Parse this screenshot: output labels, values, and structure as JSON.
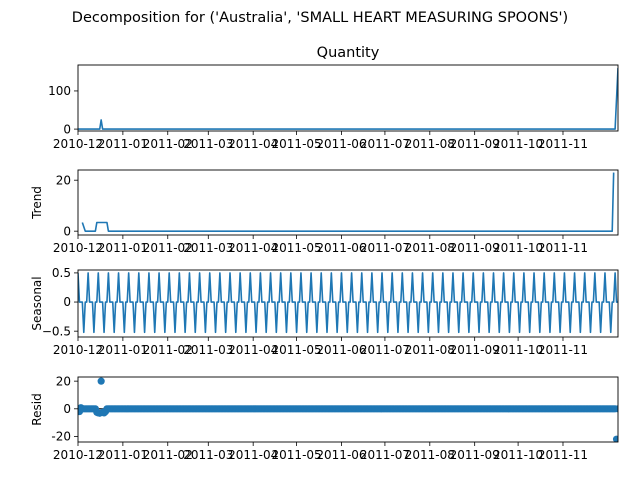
{
  "figure": {
    "suptitle": "Decomposition for ('Australia', 'SMALL HEART MEASURING SPOONS')",
    "line_color": "#1f77b4"
  },
  "chart_data": [
    {
      "type": "line",
      "title": "Quantity",
      "ylabel": "",
      "ylim": [
        -5,
        168
      ],
      "yticks": [
        0,
        100
      ],
      "xlim": [
        "2010-12-01",
        "2011-12-09"
      ],
      "xticks": [
        "2010-12",
        "2011-01",
        "2011-02",
        "2011-03",
        "2011-04",
        "2011-05",
        "2011-06",
        "2011-07",
        "2011-08",
        "2011-09",
        "2011-10",
        "2011-11"
      ],
      "grid": false,
      "x": [
        "2010-12-01",
        "2010-12-02",
        "2010-12-16",
        "2010-12-17",
        "2010-12-18",
        "2011-12-06",
        "2011-12-07",
        "2011-12-09"
      ],
      "values": [
        0,
        0,
        0,
        24,
        0,
        0,
        0,
        160
      ]
    },
    {
      "type": "line",
      "title": "",
      "ylabel": "Trend",
      "ylim": [
        -1.5,
        24
      ],
      "yticks": [
        0,
        20
      ],
      "xlim": [
        "2010-12-01",
        "2011-12-09"
      ],
      "xticks": [
        "2010-12",
        "2011-01",
        "2011-02",
        "2011-03",
        "2011-04",
        "2011-05",
        "2011-06",
        "2011-07",
        "2011-08",
        "2011-09",
        "2011-10",
        "2011-11"
      ],
      "grid": false,
      "x": [
        "2010-12-04",
        "2010-12-06",
        "2010-12-13",
        "2010-12-14",
        "2010-12-21",
        "2010-12-22",
        "2011-12-05",
        "2011-12-06"
      ],
      "values": [
        3.4,
        0,
        0,
        3.4,
        3.4,
        0,
        0,
        23
      ]
    },
    {
      "type": "line",
      "title": "",
      "ylabel": "Seasonal",
      "ylim": [
        -0.6,
        0.55
      ],
      "yticks": [
        0.5,
        0.0,
        -0.5
      ],
      "xlim": [
        "2010-12-01",
        "2011-12-09"
      ],
      "xticks": [
        "2010-12",
        "2011-01",
        "2011-02",
        "2011-03",
        "2011-04",
        "2011-05",
        "2011-06",
        "2011-07",
        "2011-08",
        "2011-09",
        "2011-10",
        "2011-11"
      ],
      "grid": false,
      "period_days": 7,
      "pattern": [
        0.5,
        0,
        0,
        0,
        -0.52,
        0,
        0
      ]
    },
    {
      "type": "scatter",
      "title": "",
      "ylabel": "Resid",
      "ylim": [
        -24,
        23
      ],
      "yticks": [
        20,
        0,
        -20
      ],
      "xlim": [
        "2010-12-01",
        "2011-12-09"
      ],
      "xticks": [
        "2010-12",
        "2011-01",
        "2011-02",
        "2011-03",
        "2011-04",
        "2011-05",
        "2011-06",
        "2011-07",
        "2011-08",
        "2011-09",
        "2011-10",
        "2011-11"
      ],
      "grid": false,
      "baseline": 0,
      "outliers": [
        {
          "x": "2010-12-02",
          "y": -2
        },
        {
          "x": "2010-12-03",
          "y": 0.8
        },
        {
          "x": "2010-12-14",
          "y": -2.5
        },
        {
          "x": "2010-12-15",
          "y": -3
        },
        {
          "x": "2010-12-16",
          "y": -3.2
        },
        {
          "x": "2010-12-17",
          "y": 20
        },
        {
          "x": "2010-12-18",
          "y": -2.5
        },
        {
          "x": "2010-12-19",
          "y": -3
        },
        {
          "x": "2010-12-20",
          "y": -2
        },
        {
          "x": "2011-12-08",
          "y": -22
        }
      ]
    }
  ]
}
